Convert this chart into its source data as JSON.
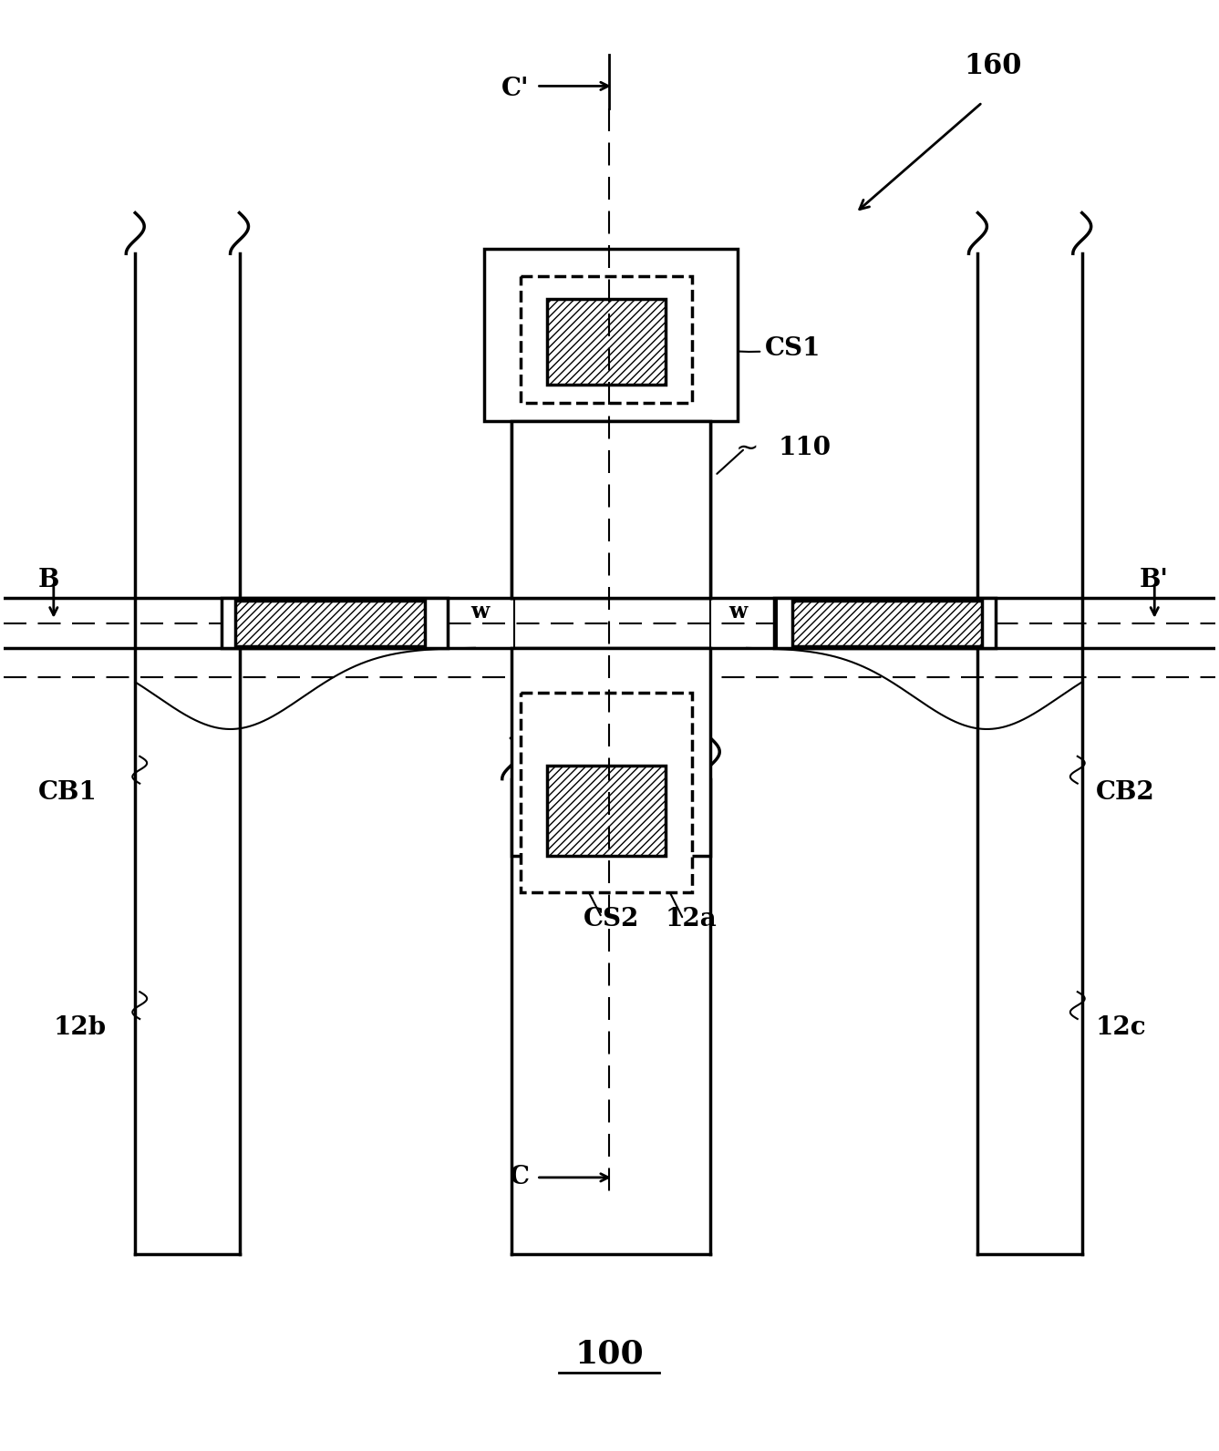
{
  "fig_width": 13.37,
  "fig_height": 15.92,
  "bg_color": "#ffffff",
  "line_color": "#000000",
  "labels": {
    "C_prime": "C'",
    "C": "C",
    "B": "B",
    "B_prime": "B'",
    "CS1": "CS1",
    "CS2": "CS2",
    "num_110": "110",
    "num_160": "160",
    "num_12a": "12a",
    "num_12b": "12b",
    "num_12c": "12c",
    "num_CB1": "CB1",
    "num_CB2": "CB2",
    "w_left": "w",
    "w_right": "w",
    "title": "100"
  }
}
